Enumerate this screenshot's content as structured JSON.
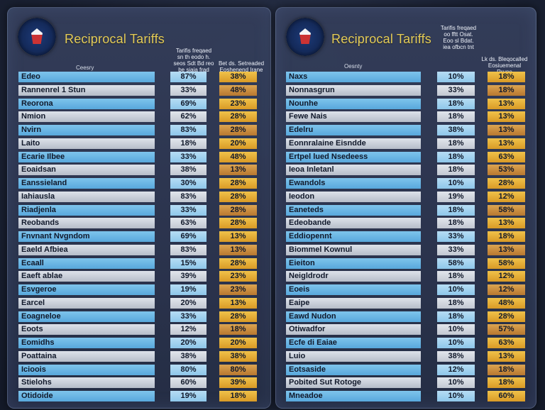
{
  "left": {
    "title": "Reciprocal Tariffs",
    "hdr_country": "Ceesry",
    "hdr_mid": [
      "Tarifis freqaed",
      "sn th eodo h.",
      "seos Sdt Bd reo",
      "be siaia frad"
    ],
    "hdr_val": [
      "Bet ds. Setreaded",
      "Eoshenend Irane"
    ],
    "rows": [
      {
        "name": "Edeo",
        "mid": "87%",
        "val": "38%"
      },
      {
        "name": "Rannenrel 1 Stun",
        "mid": "33%",
        "val": "48%"
      },
      {
        "name": "Reorona",
        "mid": "69%",
        "val": "23%"
      },
      {
        "name": "Nmion",
        "mid": "62%",
        "val": "28%"
      },
      {
        "name": "Nvirn",
        "mid": "83%",
        "val": "28%"
      },
      {
        "name": "Laito",
        "mid": "18%",
        "val": "20%"
      },
      {
        "name": "Ecarie Ilbee",
        "mid": "33%",
        "val": "48%"
      },
      {
        "name": "Eoaidsan",
        "mid": "38%",
        "val": "13%"
      },
      {
        "name": "Eanssieland",
        "mid": "30%",
        "val": "28%"
      },
      {
        "name": "Iahiausla",
        "mid": "83%",
        "val": "28%"
      },
      {
        "name": "Riadjenla",
        "mid": "33%",
        "val": "28%"
      },
      {
        "name": "Reobands",
        "mid": "63%",
        "val": "28%"
      },
      {
        "name": "Fnvnant Nvgndom",
        "mid": "69%",
        "val": "13%"
      },
      {
        "name": "Eaeld Afbiea",
        "mid": "83%",
        "val": "13%"
      },
      {
        "name": "Ecaall",
        "mid": "15%",
        "val": "28%"
      },
      {
        "name": "Eaeft ablae",
        "mid": "39%",
        "val": "23%"
      },
      {
        "name": "Esvgeroe",
        "mid": "19%",
        "val": "23%"
      },
      {
        "name": "Earcel",
        "mid": "20%",
        "val": "13%"
      },
      {
        "name": "Eoagneloe",
        "mid": "33%",
        "val": "28%"
      },
      {
        "name": "Eoots",
        "mid": "12%",
        "val": "18%"
      },
      {
        "name": "Eomidhs",
        "mid": "20%",
        "val": "20%"
      },
      {
        "name": "Poattaina",
        "mid": "38%",
        "val": "38%"
      },
      {
        "name": "Icioois",
        "mid": "80%",
        "val": "80%"
      },
      {
        "name": "Stielohs",
        "mid": "60%",
        "val": "39%"
      },
      {
        "name": "Otidoide",
        "mid": "19%",
        "val": "18%"
      }
    ]
  },
  "right": {
    "title": "Reciprocal Tariffs",
    "hdr_country": "Oesnty",
    "hdr_mid": [
      "Tarifis freqaed",
      "oo fftt Osat.",
      "Eoo sl Bdat.",
      "iea ofbcn tnt"
    ],
    "hdr_val": [
      "Lk ds. Bleqocalled",
      "Eosiuemenal Rrune"
    ],
    "rows": [
      {
        "name": "Naxs",
        "mid": "10%",
        "val": "18%"
      },
      {
        "name": "Nonnasgrun",
        "mid": "33%",
        "val": "18%"
      },
      {
        "name": "Nounhe",
        "mid": "18%",
        "val": "13%"
      },
      {
        "name": "Fewe Nais",
        "mid": "18%",
        "val": "13%"
      },
      {
        "name": "Edelru",
        "mid": "38%",
        "val": "13%"
      },
      {
        "name": "Eonnralaine Eisndde",
        "mid": "18%",
        "val": "13%"
      },
      {
        "name": "Ertpel lued Nsedeess",
        "mid": "18%",
        "val": "63%"
      },
      {
        "name": "Ieoa Inletanl",
        "mid": "18%",
        "val": "53%"
      },
      {
        "name": "Ewandols",
        "mid": "10%",
        "val": "28%"
      },
      {
        "name": "Ieodon",
        "mid": "19%",
        "val": "12%"
      },
      {
        "name": "Eaneteds",
        "mid": "18%",
        "val": "58%"
      },
      {
        "name": "Edeobande",
        "mid": "18%",
        "val": "13%"
      },
      {
        "name": "Eddiopennt",
        "mid": "33%",
        "val": "18%"
      },
      {
        "name": "Biommel Kownul",
        "mid": "33%",
        "val": "13%"
      },
      {
        "name": "Eieiton",
        "mid": "58%",
        "val": "58%"
      },
      {
        "name": "Neigldrodr",
        "mid": "18%",
        "val": "12%"
      },
      {
        "name": "Eoeis",
        "mid": "10%",
        "val": "12%"
      },
      {
        "name": "Eaipe",
        "mid": "18%",
        "val": "48%"
      },
      {
        "name": "Eawd Nudon",
        "mid": "18%",
        "val": "28%"
      },
      {
        "name": "Otiwadfor",
        "mid": "10%",
        "val": "57%"
      },
      {
        "name": "Ecfe di Eaiae",
        "mid": "10%",
        "val": "63%"
      },
      {
        "name": "Luio",
        "mid": "38%",
        "val": "13%"
      },
      {
        "name": "Eotsaside",
        "mid": "12%",
        "val": "18%"
      },
      {
        "name": "Pobited Sut Rotoge",
        "mid": "10%",
        "val": "18%"
      },
      {
        "name": "Mneadoe",
        "mid": "10%",
        "val": "60%"
      }
    ]
  }
}
